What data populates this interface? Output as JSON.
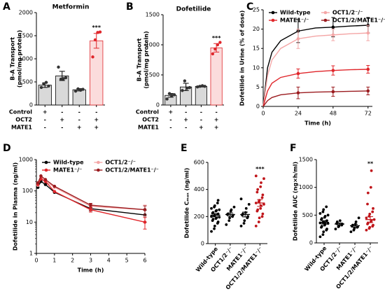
{
  "chart_data": [
    {
      "type": "bar",
      "label": "A",
      "title": "Metformin",
      "ylabel": [
        "B-A Transport",
        "(pmol/mg protein)"
      ],
      "ylim": [
        0,
        2000
      ],
      "yticks": [
        0,
        500,
        1000,
        1500,
        2000
      ],
      "values": [
        430,
        630,
        330,
        1390
      ],
      "errors": [
        50,
        100,
        25,
        160
      ],
      "points": [
        [
          380,
          460,
          490,
          410
        ],
        [
          820,
          560,
          570,
          590
        ],
        [
          300,
          350,
          320,
          340
        ],
        [
          1040,
          1410,
          1570,
          1580
        ]
      ],
      "colors": [
        "#d9d9d9",
        "#d9d9d9",
        "#d9d9d9",
        "#fbdcdc"
      ],
      "edges": [
        "#000000",
        "#000000",
        "#000000",
        "#e0262b"
      ],
      "value_annotations": [
        null,
        null,
        null,
        "***"
      ],
      "table": {
        "rows": [
          "Control",
          "OCT2",
          "MATE1"
        ],
        "cells": [
          [
            "+",
            "-",
            "-",
            "-"
          ],
          [
            "-",
            "+",
            "-",
            "+"
          ],
          [
            "-",
            "-",
            "+",
            "+"
          ]
        ]
      }
    },
    {
      "type": "bar",
      "label": "B",
      "title": "Dofetilide",
      "ylabel": [
        "B-A Transport",
        "(pmol/mg protein)"
      ],
      "ylim": [
        0,
        1500
      ],
      "yticks": [
        0,
        500,
        1000,
        1500
      ],
      "values": [
        160,
        300,
        310,
        950
      ],
      "errors": [
        30,
        60,
        10,
        70
      ],
      "points": [
        [
          100,
          190,
          160,
          170
        ],
        [
          240,
          400,
          280,
          290
        ],
        [
          300,
          310,
          320,
          310
        ],
        [
          850,
          930,
          1000,
          1040
        ]
      ],
      "colors": [
        "#d9d9d9",
        "#d9d9d9",
        "#d9d9d9",
        "#fbdcdc"
      ],
      "edges": [
        "#000000",
        "#000000",
        "#000000",
        "#e0262b"
      ],
      "value_annotations": [
        null,
        null,
        null,
        "***"
      ],
      "table": {
        "rows": [
          "Control",
          "OCT2",
          "MATE1"
        ],
        "cells": [
          [
            "+",
            "-",
            "-",
            "-"
          ],
          [
            "-",
            "+",
            "-",
            "+"
          ],
          [
            "-",
            "-",
            "+",
            "+"
          ]
        ]
      }
    },
    {
      "type": "line",
      "label": "C",
      "ylabel": "Dofetilide in Urine (% of dose)",
      "xlabel": "Time (h)",
      "xlim": [
        0,
        75
      ],
      "xticks": [
        0,
        24,
        48,
        72
      ],
      "ylim": [
        0,
        25
      ],
      "yticks": [
        0,
        5,
        10,
        15,
        20,
        25
      ],
      "log_y": false,
      "markers": false,
      "x": [
        0,
        3,
        6,
        12,
        24,
        36,
        48,
        60,
        72
      ],
      "series": [
        {
          "name": "Wild-type",
          "color": "#000000",
          "values": [
            0,
            10,
            14,
            17,
            19.5,
            20.3,
            20.5,
            20.8,
            21
          ],
          "errors": [
            null,
            null,
            null,
            null,
            3,
            null,
            2.5,
            null,
            2
          ]
        },
        {
          "name": "OCT1/2⁻/⁻",
          "color": "#f4a6a6",
          "values": [
            0,
            8,
            12,
            15,
            17.5,
            18.2,
            18.5,
            18.8,
            19
          ],
          "errors": [
            null,
            null,
            null,
            null,
            2.5,
            null,
            1.5,
            null,
            2
          ]
        },
        {
          "name": "MATE1⁻/⁻",
          "color": "#e0262b",
          "values": [
            0,
            4,
            6,
            7.5,
            8.5,
            9,
            9.3,
            9.5,
            9.6
          ],
          "errors": [
            null,
            null,
            null,
            null,
            1.2,
            null,
            1.2,
            null,
            1
          ]
        },
        {
          "name": "OCT1/2/MATE1⁻/⁻",
          "color": "#9b1b1f",
          "values": [
            0,
            1.5,
            2.3,
            3,
            3.5,
            3.7,
            3.8,
            3.9,
            4
          ],
          "errors": [
            null,
            null,
            null,
            null,
            1.5,
            null,
            1.2,
            null,
            1
          ]
        }
      ]
    },
    {
      "type": "line",
      "label": "D",
      "ylabel": "Dofetilide in Plasma (ng/ml)",
      "xlabel": "Time (h)",
      "xlim": [
        0,
        6
      ],
      "xticks": [
        0,
        1,
        2,
        3,
        4,
        5,
        6
      ],
      "ylim": [
        1,
        1000
      ],
      "yticks": [
        1,
        10,
        100,
        1000
      ],
      "log_y": true,
      "markers": true,
      "x": [
        0.083,
        0.25,
        0.5,
        1,
        3,
        6
      ],
      "series": [
        {
          "name": "Wild-type",
          "color": "#000000",
          "values": [
            130,
            200,
            160,
            90,
            27,
            17
          ],
          "errors": [
            null,
            null,
            null,
            null,
            4,
            7
          ]
        },
        {
          "name": "OCT1/2⁻/⁻",
          "color": "#f4a6a6",
          "values": [
            150,
            260,
            200,
            130,
            32,
            25
          ],
          "errors": [
            null,
            null,
            null,
            null,
            5,
            10
          ]
        },
        {
          "name": "MATE1⁻/⁻",
          "color": "#e0262b",
          "values": [
            160,
            240,
            200,
            95,
            25,
            10
          ],
          "errors": [
            null,
            null,
            null,
            null,
            4,
            4
          ]
        },
        {
          "name": "OCT1/2/MATE1⁻/⁻",
          "color": "#9b1b1f",
          "values": [
            180,
            300,
            230,
            140,
            35,
            25
          ],
          "errors": [
            null,
            null,
            null,
            null,
            5,
            8
          ]
        }
      ]
    },
    {
      "type": "dot",
      "label": "E",
      "ylabel": "Dofetilide Cₘₐₓ (ng/ml)",
      "ylim": [
        0,
        600
      ],
      "yticks": [
        0,
        200,
        400,
        600
      ],
      "categories": [
        "Wild-type",
        "OCT1/2⁻/⁻",
        "MATE1⁻/⁻",
        "OCT1/2/MATE1⁻/⁻"
      ],
      "colors": [
        "#000000",
        "#000000",
        "#000000",
        "#c0161b"
      ],
      "points": [
        [
          90,
          110,
          130,
          150,
          160,
          170,
          180,
          185,
          190,
          195,
          200,
          205,
          210,
          215,
          220,
          225,
          230,
          240,
          245,
          250,
          260,
          270,
          280,
          300,
          320
        ],
        [
          140,
          170,
          190,
          200,
          210,
          215,
          220,
          240,
          250,
          270
        ],
        [
          130,
          150,
          170,
          190,
          200,
          210,
          220,
          230,
          260,
          290,
          330
        ],
        [
          130,
          160,
          190,
          200,
          220,
          240,
          250,
          260,
          280,
          290,
          300,
          310,
          320,
          340,
          360,
          380,
          400,
          420,
          450,
          480,
          500
        ]
      ],
      "means": [
        210,
        215,
        215,
        300
      ],
      "sems": [
        12,
        12,
        18,
        25
      ],
      "value_annotations": [
        null,
        null,
        null,
        "***"
      ]
    },
    {
      "type": "dot",
      "label": "F",
      "ylabel": "Dofetilide AUC (ng×h/ml)",
      "ylim": [
        0,
        1500
      ],
      "yticks": [
        0,
        500,
        1000,
        1500
      ],
      "categories": [
        "Wild-type",
        "OCT1/2⁻/⁻",
        "MATE1⁻/⁻",
        "OCT1/2/MATE1⁻/⁻"
      ],
      "colors": [
        "#000000",
        "#000000",
        "#000000",
        "#c0161b"
      ],
      "points": [
        [
          110,
          150,
          200,
          230,
          250,
          280,
          300,
          320,
          340,
          350,
          360,
          370,
          380,
          390,
          400,
          420,
          440,
          460,
          480,
          500,
          530,
          560,
          600,
          650
        ],
        [
          250,
          290,
          300,
          320,
          340,
          350,
          380,
          400
        ],
        [
          200,
          230,
          260,
          280,
          290,
          300,
          320,
          340,
          380,
          450
        ],
        [
          230,
          260,
          280,
          300,
          320,
          340,
          360,
          380,
          400,
          420,
          450,
          480,
          520,
          560,
          620,
          700,
          900,
          1000,
          1300
        ]
      ],
      "means": [
        370,
        340,
        310,
        420
      ],
      "sems": [
        30,
        20,
        25,
        55
      ],
      "value_annotations": [
        null,
        null,
        null,
        "**"
      ]
    }
  ]
}
